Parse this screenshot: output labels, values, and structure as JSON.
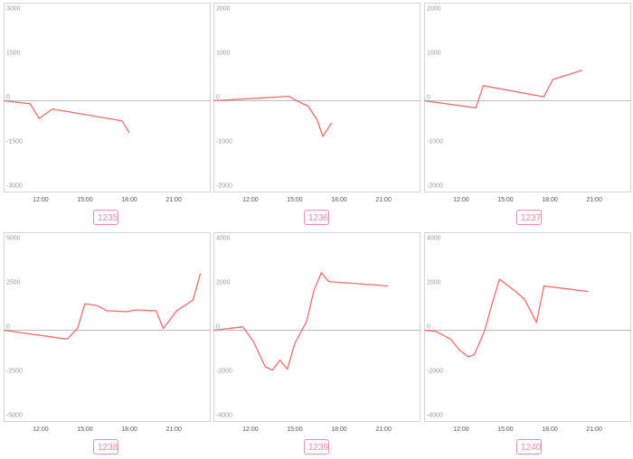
{
  "colors": {
    "line": "#f26b6b",
    "badge": "#f08aa8",
    "frame": "#d4d4d4",
    "zero_line": "#bdbdbd"
  },
  "chart_data": [
    {
      "type": "line",
      "badge": "1235",
      "y_ticks": [
        "3000",
        "1500",
        "0",
        "-1500",
        "-3000"
      ],
      "ylim": [
        -3000,
        3000
      ],
      "x_ticks": [
        "12:00",
        "15:00",
        "18:00",
        "21:00"
      ],
      "xlim": [
        9.5,
        23.5
      ],
      "series": [
        {
          "x": [
            9.5,
            11.3,
            11.9,
            12.8,
            17.5,
            18.0
          ],
          "y": [
            0,
            -100,
            -600,
            -280,
            -680,
            -1080
          ]
        }
      ]
    },
    {
      "type": "line",
      "badge": "1236",
      "y_ticks": [
        "2000",
        "1000",
        "0",
        "-1000",
        "-2000"
      ],
      "ylim": [
        -2000,
        2000
      ],
      "x_ticks": [
        "12:00",
        "15:00",
        "18:00",
        "21:00"
      ],
      "xlim": [
        9.5,
        23.5
      ],
      "series": [
        {
          "x": [
            9.5,
            14.6,
            15.2,
            15.9,
            16.5,
            16.9,
            17.5
          ],
          "y": [
            0,
            100,
            -10,
            -120,
            -420,
            -800,
            -500
          ]
        }
      ]
    },
    {
      "type": "line",
      "badge": "1237",
      "y_ticks": [
        "2000",
        "1000",
        "0",
        "-1000",
        "-2000"
      ],
      "ylim": [
        -2000,
        2000
      ],
      "x_ticks": [
        "12:00",
        "15:00",
        "18:00",
        "21:00"
      ],
      "xlim": [
        9.5,
        23.5
      ],
      "series": [
        {
          "x": [
            9.5,
            13.0,
            13.5,
            17.6,
            18.2,
            20.2
          ],
          "y": [
            0,
            -160,
            340,
            90,
            480,
            690
          ]
        }
      ]
    },
    {
      "type": "line",
      "badge": "1238",
      "y_ticks": [
        "5000",
        "2500",
        "0",
        "-2500",
        "-5000"
      ],
      "ylim": [
        -5000,
        5000
      ],
      "x_ticks": [
        "12:00",
        "15:00",
        "18:00",
        "21:00"
      ],
      "xlim": [
        9.5,
        23.5
      ],
      "series": [
        {
          "x": [
            9.5,
            13.8,
            14.5,
            15.0,
            15.8,
            16.5,
            17.8,
            18.5,
            19.8,
            20.3,
            21.2,
            22.3,
            22.8
          ],
          "y": [
            0,
            -500,
            100,
            1500,
            1400,
            1100,
            1050,
            1150,
            1100,
            100,
            1100,
            1700,
            3200
          ]
        }
      ]
    },
    {
      "type": "line",
      "badge": "1239",
      "y_ticks": [
        "4000",
        "2000",
        "0",
        "-2000",
        "-4000"
      ],
      "ylim": [
        -4000,
        4000
      ],
      "x_ticks": [
        "12:00",
        "15:00",
        "18:00",
        "21:00"
      ],
      "xlim": [
        9.5,
        23.5
      ],
      "series": [
        {
          "x": [
            9.5,
            11.5,
            12.2,
            13.0,
            13.5,
            14.0,
            14.5,
            15.0,
            15.8,
            16.3,
            16.8,
            17.3,
            21.3
          ],
          "y": [
            0,
            150,
            -500,
            -1650,
            -1800,
            -1350,
            -1750,
            -600,
            400,
            1800,
            2600,
            2200,
            2000
          ]
        }
      ]
    },
    {
      "type": "line",
      "badge": "1240",
      "y_ticks": [
        "4000",
        "2000",
        "0",
        "-2000",
        "-4000"
      ],
      "ylim": [
        -4000,
        4000
      ],
      "x_ticks": [
        "12:00",
        "15:00",
        "18:00",
        "21:00"
      ],
      "xlim": [
        9.5,
        23.5
      ],
      "series": [
        {
          "x": [
            9.5,
            10.3,
            11.3,
            11.9,
            12.5,
            12.9,
            13.6,
            14.1,
            14.6,
            15.6,
            16.3,
            17.1,
            17.6,
            20.6
          ],
          "y": [
            0,
            -50,
            -400,
            -900,
            -1200,
            -1100,
            0,
            1200,
            2300,
            1800,
            1400,
            350,
            2000,
            1750
          ]
        }
      ]
    }
  ]
}
